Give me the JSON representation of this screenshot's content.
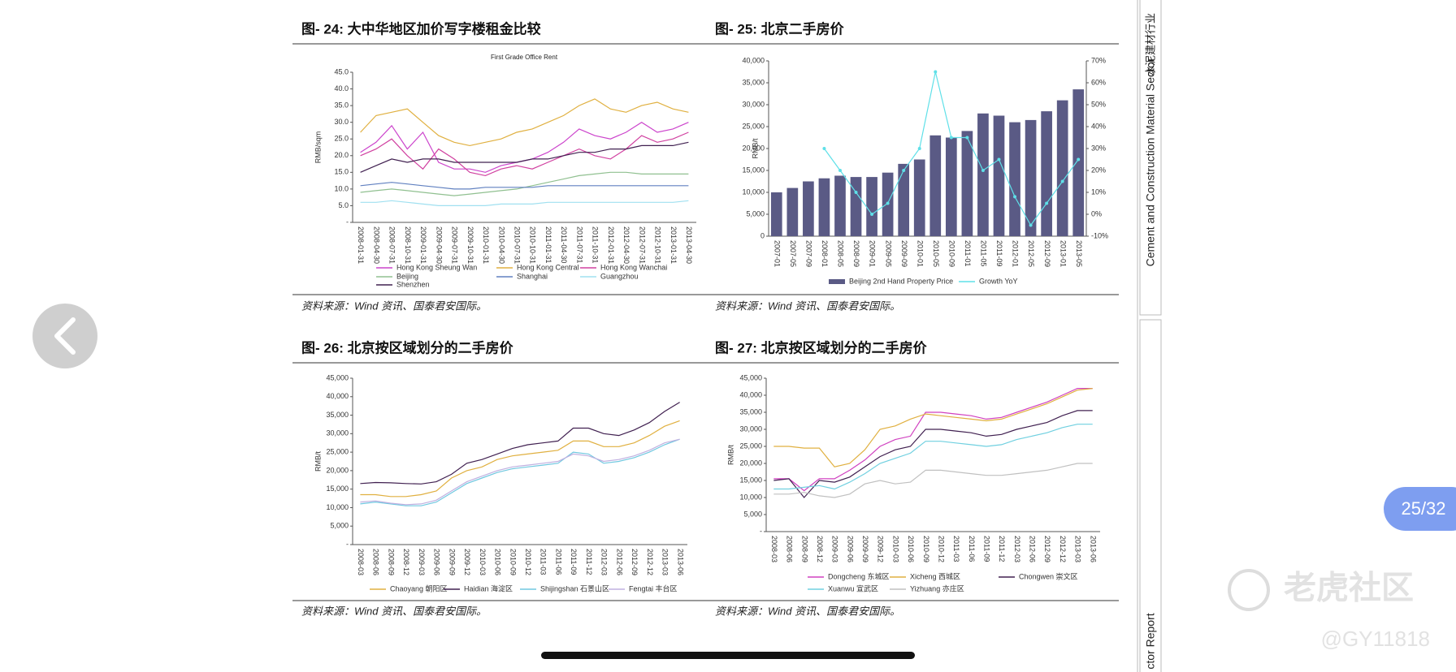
{
  "page_indicator": "25/32",
  "sidebar": {
    "sector_en": "Cement and Construction Material Sector",
    "sector_cn": "水泥建材行业",
    "report": "ctor Report"
  },
  "watermark": {
    "brand": "老虎社区",
    "handle": "@GY11818"
  },
  "chart_data": [
    {
      "type": "line",
      "figure_title": "图- 24: 大中华地区加价写字楼租金比较",
      "source": "资料来源：Wind 资讯、国泰君安国际。",
      "title": "First Grade Office Rent",
      "y_label": "RMB/sqm",
      "categories": [
        "2008-01-31",
        "2008-04-30",
        "2008-07-31",
        "2008-10-31",
        "2009-01-31",
        "2009-04-30",
        "2009-07-31",
        "2009-10-31",
        "2010-01-31",
        "2010-04-30",
        "2010-07-31",
        "2010-10-31",
        "2011-01-31",
        "2011-04-30",
        "2011-07-31",
        "2011-10-31",
        "2012-01-31",
        "2012-04-30",
        "2012-07-31",
        "2012-10-31",
        "2013-01-31",
        "2013-04-30"
      ],
      "ylim": [
        0,
        45
      ],
      "yticks": [
        {
          "value": 0,
          "label": "-"
        },
        {
          "value": 5,
          "label": "5.0"
        },
        {
          "value": 10,
          "label": "10.0"
        },
        {
          "value": 15,
          "label": "15.0"
        },
        {
          "value": 20,
          "label": "20.0"
        },
        {
          "value": 25,
          "label": "25.0"
        },
        {
          "value": 30,
          "label": "30.0"
        },
        {
          "value": 35,
          "label": "35.0"
        },
        {
          "value": 40,
          "label": "40.0"
        },
        {
          "value": 45,
          "label": "45.0"
        }
      ],
      "grid": false,
      "series": [
        {
          "name": "Hong Kong Sheung Wan",
          "color": "#cc44cc",
          "values": [
            21,
            24,
            29,
            22,
            27,
            18,
            16,
            16,
            15,
            17,
            18,
            19,
            21,
            24,
            28,
            26,
            25,
            27,
            30,
            27,
            28,
            30
          ]
        },
        {
          "name": "Hong Kong Central",
          "color": "#e0b040",
          "values": [
            27,
            32,
            33,
            34,
            30,
            26,
            24,
            23,
            24,
            25,
            27,
            28,
            30,
            32,
            35,
            37,
            34,
            33,
            35,
            36,
            34,
            33
          ]
        },
        {
          "name": "Hong Kong Wanchai",
          "color": "#d040a0",
          "values": [
            20,
            22,
            25,
            20,
            16,
            22,
            19,
            15,
            14,
            16,
            17,
            16,
            18,
            20,
            22,
            20,
            19,
            22,
            26,
            24,
            25,
            27
          ]
        },
        {
          "name": "Beijing",
          "color": "#90c090",
          "values": [
            9,
            9.5,
            10,
            9.5,
            9,
            8.5,
            8,
            8.5,
            9,
            9.5,
            10,
            11,
            12,
            13,
            14,
            14.5,
            15,
            15,
            14.5,
            14.5,
            14.5,
            14.5
          ]
        },
        {
          "name": "Shanghai",
          "color": "#6080c0",
          "values": [
            11,
            11.5,
            12,
            11.5,
            11,
            10.5,
            10,
            10,
            10.5,
            10.5,
            10.5,
            10.5,
            11,
            11,
            11,
            11,
            11,
            11,
            11,
            11,
            11,
            11
          ]
        },
        {
          "name": "Guangzhou",
          "color": "#a0e0f0",
          "values": [
            6,
            6,
            6.5,
            6,
            5.5,
            5,
            5,
            5,
            5,
            5.5,
            5.5,
            5.5,
            6,
            6,
            6,
            6,
            6,
            6,
            6,
            6,
            6,
            6.5
          ]
        },
        {
          "name": "Shenzhen",
          "color": "#402050",
          "values": [
            15,
            17,
            19,
            18,
            19,
            19,
            18,
            18,
            18,
            18,
            18,
            19,
            19,
            20,
            21,
            21,
            22,
            22,
            23,
            23,
            23,
            24
          ]
        }
      ]
    },
    {
      "type": "bar",
      "figure_title": "图- 25: 北京二手房价",
      "source": "资料来源：Wind 资讯、国泰君安国际。",
      "y_label": "RMB/t",
      "categories": [
        "2007-01",
        "2007-05",
        "2007-09",
        "2008-01",
        "2008-05",
        "2008-09",
        "2009-01",
        "2009-05",
        "2009-09",
        "2010-01",
        "2010-05",
        "2010-09",
        "2011-01",
        "2011-05",
        "2011-09",
        "2012-01",
        "2012-05",
        "2012-09",
        "2013-01",
        "2013-05"
      ],
      "ylim": [
        0,
        40000
      ],
      "yticks": [
        0,
        {
          "value": 5000,
          "label": "5,000"
        },
        {
          "value": 10000,
          "label": "10,000"
        },
        {
          "value": 15000,
          "label": "15,000"
        },
        {
          "value": 20000,
          "label": "20,000"
        },
        {
          "value": 25000,
          "label": "25,000"
        },
        {
          "value": 30000,
          "label": "30,000"
        },
        {
          "value": 35000,
          "label": "35,000"
        },
        {
          "value": 40000,
          "label": "40,000"
        }
      ],
      "y2lim": [
        -10,
        70
      ],
      "y2ticks": [
        {
          "value": -10,
          "label": "-10%"
        },
        {
          "value": 0,
          "label": "0%"
        },
        {
          "value": 10,
          "label": "10%"
        },
        {
          "value": 20,
          "label": "20%"
        },
        {
          "value": 30,
          "label": "30%"
        },
        {
          "value": 40,
          "label": "40%"
        },
        {
          "value": 50,
          "label": "50%"
        },
        {
          "value": 60,
          "label": "60%"
        },
        {
          "value": 70,
          "label": "70%"
        }
      ],
      "grid": false,
      "series": [
        {
          "name": "Beijing 2nd Hand Property Price",
          "color": "#5a5a85",
          "values": [
            10000,
            11000,
            12500,
            13200,
            13800,
            13500,
            13500,
            14500,
            16500,
            17500,
            23000,
            22500,
            24000,
            28000,
            27500,
            26000,
            26500,
            28500,
            31000,
            33500
          ]
        },
        {
          "name": "Growth YoY",
          "color": "#5fe0e8",
          "type": "line",
          "axis": "y2",
          "values": [
            null,
            null,
            null,
            30,
            20,
            10,
            0,
            5,
            20,
            30,
            65,
            35,
            35,
            20,
            25,
            8,
            -5,
            5,
            15,
            25
          ]
        }
      ]
    },
    {
      "type": "line",
      "figure_title": "图- 26: 北京按区域划分的二手房价",
      "source": "资料来源：Wind 资讯、国泰君安国际。",
      "y_label": "RMB/t",
      "categories": [
        "2008-03",
        "2008-06",
        "2008-09",
        "2008-12",
        "2009-03",
        "2009-06",
        "2009-09",
        "2009-12",
        "2010-03",
        "2010-06",
        "2010-09",
        "2010-12",
        "2011-03",
        "2011-06",
        "2011-09",
        "2011-12",
        "2012-03",
        "2012-06",
        "2012-09",
        "2012-12",
        "2013-03",
        "2013-06"
      ],
      "ylim": [
        0,
        45000
      ],
      "yticks": [
        {
          "value": 0,
          "label": "-"
        },
        {
          "value": 5000,
          "label": "5,000"
        },
        {
          "value": 10000,
          "label": "10,000"
        },
        {
          "value": 15000,
          "label": "15,000"
        },
        {
          "value": 20000,
          "label": "20,000"
        },
        {
          "value": 25000,
          "label": "25,000"
        },
        {
          "value": 30000,
          "label": "30,000"
        },
        {
          "value": 35000,
          "label": "35,000"
        },
        {
          "value": 40000,
          "label": "40,000"
        },
        {
          "value": 45000,
          "label": "45,000"
        }
      ],
      "grid": false,
      "series": [
        {
          "name": "Chaoyang 朝阳区",
          "color": "#e0b040",
          "values": [
            13500,
            13500,
            13000,
            13000,
            13500,
            14500,
            18000,
            20000,
            21000,
            23000,
            24000,
            24500,
            25000,
            25500,
            28000,
            28000,
            26500,
            26500,
            27500,
            29500,
            32000,
            33500
          ]
        },
        {
          "name": "Haidian 海淀区",
          "color": "#402050",
          "values": [
            16500,
            16800,
            16700,
            16500,
            16400,
            17000,
            19000,
            22000,
            23000,
            24500,
            26000,
            27000,
            27500,
            28000,
            31500,
            31500,
            30000,
            29500,
            31000,
            33000,
            36000,
            38500
          ]
        },
        {
          "name": "Shijingshan 石景山区",
          "color": "#70c8e0",
          "values": [
            11000,
            11500,
            11000,
            10500,
            10500,
            11500,
            14000,
            16500,
            18000,
            19500,
            20500,
            21000,
            21500,
            22000,
            25000,
            24500,
            22000,
            22500,
            23500,
            25000,
            27000,
            28500
          ]
        },
        {
          "name": "Fengtai 丰台区",
          "color": "#c0b0e0",
          "values": [
            11500,
            11800,
            11200,
            10800,
            11000,
            12000,
            14500,
            17000,
            18500,
            20000,
            21000,
            21500,
            22000,
            22500,
            24500,
            24000,
            22500,
            23000,
            24000,
            25500,
            27500,
            28500
          ]
        }
      ]
    },
    {
      "type": "line",
      "figure_title": "图- 27: 北京按区域划分的二手房价",
      "source": "资料来源：Wind 资讯、国泰君安国际。",
      "y_label": "RMB/t",
      "categories": [
        "2008-03",
        "2008-06",
        "2008-09",
        "2008-12",
        "2009-03",
        "2009-06",
        "2009-09",
        "2009-12",
        "2010-03",
        "2010-06",
        "2010-09",
        "2010-12",
        "2011-03",
        "2011-06",
        "2011-09",
        "2011-12",
        "2012-03",
        "2012-06",
        "2012-09",
        "2012-12",
        "2013-03",
        "2013-06"
      ],
      "ylim": [
        0,
        45000
      ],
      "yticks": [
        {
          "value": 0,
          "label": "-"
        },
        {
          "value": 5000,
          "label": "5,000"
        },
        {
          "value": 10000,
          "label": "10,000"
        },
        {
          "value": 15000,
          "label": "15,000"
        },
        {
          "value": 20000,
          "label": "20,000"
        },
        {
          "value": 25000,
          "label": "25,000"
        },
        {
          "value": 30000,
          "label": "30,000"
        },
        {
          "value": 35000,
          "label": "35,000"
        },
        {
          "value": 40000,
          "label": "40,000"
        },
        {
          "value": 45000,
          "label": "45,000"
        }
      ],
      "grid": false,
      "series": [
        {
          "name": "Dongcheng 东城区",
          "color": "#d040c0",
          "values": [
            15500,
            15500,
            12000,
            15500,
            15500,
            18000,
            21000,
            25000,
            27000,
            28000,
            35000,
            35000,
            34500,
            34000,
            33000,
            33500,
            35000,
            36500,
            38000,
            40000,
            42000,
            42000
          ]
        },
        {
          "name": "Xicheng 西城区",
          "color": "#e0b040",
          "values": [
            25000,
            25000,
            24500,
            24500,
            19000,
            20000,
            24000,
            30000,
            31000,
            33000,
            34500,
            34000,
            33500,
            33000,
            32500,
            33000,
            34500,
            36000,
            37500,
            39500,
            41500,
            42000
          ]
        },
        {
          "name": "Chongwen 崇文区",
          "color": "#402050",
          "values": [
            15000,
            15500,
            10000,
            15000,
            14500,
            16000,
            19000,
            22000,
            24000,
            25000,
            30000,
            30000,
            29500,
            29000,
            28000,
            28500,
            30000,
            31000,
            32000,
            34000,
            35500,
            35500
          ]
        },
        {
          "name": "Xuanwu 宣武区",
          "color": "#70d0e0",
          "values": [
            12500,
            12500,
            13000,
            13500,
            12500,
            14500,
            17000,
            20000,
            21500,
            23000,
            26500,
            26500,
            26000,
            25500,
            25000,
            25500,
            27000,
            28000,
            29000,
            30500,
            31500,
            31500
          ]
        },
        {
          "name": "Yizhuang 亦庄区",
          "color": "#c0c0c0",
          "values": [
            11000,
            11000,
            11500,
            10500,
            10000,
            11000,
            14000,
            15000,
            14000,
            14500,
            18000,
            18000,
            17500,
            17000,
            16500,
            16500,
            17000,
            17500,
            18000,
            19000,
            20000,
            20000
          ]
        }
      ]
    }
  ]
}
